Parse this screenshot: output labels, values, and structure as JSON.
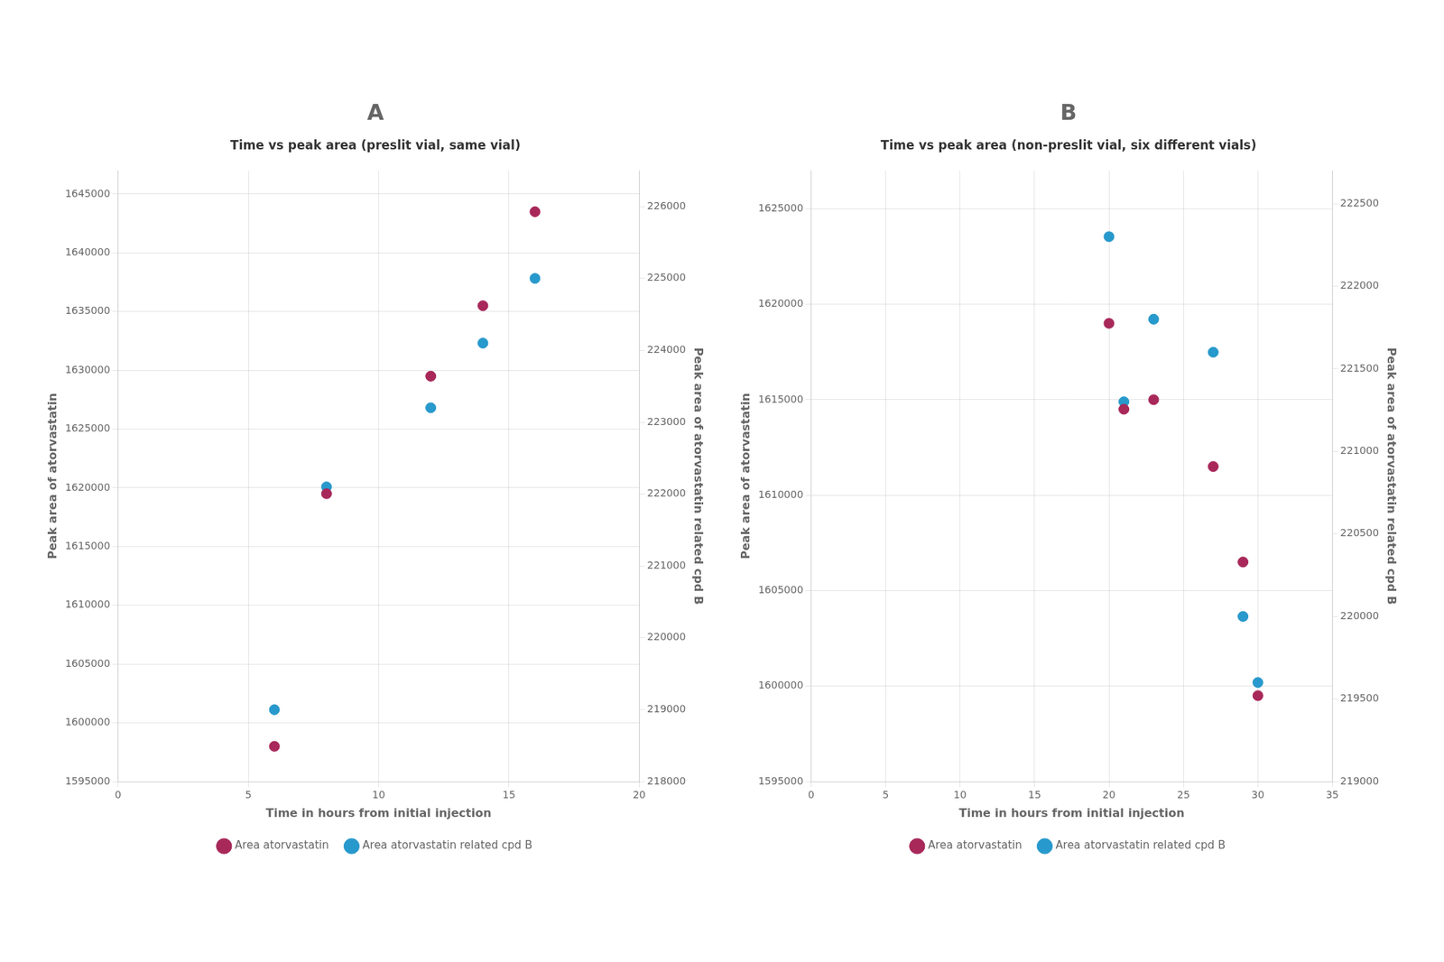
{
  "chart_data": [
    {
      "type": "scatter",
      "annotations": [
        "A"
      ],
      "title": "Time vs peak area (preslit vial, same vial)",
      "x_label": "Time in hours from initial injection",
      "y_label": "Peak area of atorvastatin",
      "y2_label": "Peak area of atorvastatin related cpd B",
      "x": [
        6,
        8,
        12,
        14,
        16
      ],
      "series": [
        {
          "name": "Area atorvastatin",
          "color": "#a8285a",
          "marker": "circle",
          "axis": "y",
          "values": [
            1598000,
            1619500,
            1629500,
            1635500,
            1643500
          ]
        },
        {
          "name": "Area atorvastatin related cpd B",
          "color": "#2899cc",
          "marker": "circle",
          "axis": "y2",
          "values": [
            219000,
            222100,
            223200,
            224100,
            225000
          ]
        }
      ],
      "xlim": [
        0,
        20
      ],
      "xticks": [
        0,
        5,
        10,
        15,
        20
      ],
      "ylim": [
        1595000,
        1647000
      ],
      "yticks": [
        1595000,
        1600000,
        1605000,
        1610000,
        1615000,
        1620000,
        1625000,
        1630000,
        1635000,
        1640000,
        1645000
      ],
      "y2lim": [
        218000,
        226500
      ],
      "y2ticks": [
        218000,
        219000,
        220000,
        221000,
        222000,
        223000,
        224000,
        225000,
        226000
      ],
      "grid": true,
      "legend": "bottom"
    },
    {
      "type": "scatter",
      "annotations": [
        "B"
      ],
      "title": "Time vs peak area (non-preslit vial, six different vials)",
      "x_label": "Time in hours from initial injection",
      "y_label": "Peak area of atorvastatin",
      "y2_label": "Peak area of atorvastatin related cpd B",
      "x": [
        20,
        21,
        23,
        27,
        29,
        30
      ],
      "series": [
        {
          "name": "Area atorvastatin",
          "color": "#a8285a",
          "marker": "circle",
          "axis": "y",
          "values": [
            1619000,
            1614500,
            1615000,
            1611500,
            1606500,
            1599500
          ]
        },
        {
          "name": "Area atorvastatin related cpd B",
          "color": "#2899cc",
          "marker": "circle",
          "axis": "y2",
          "values": [
            222300,
            221300,
            221800,
            221600,
            220000,
            219600
          ]
        }
      ],
      "xlim": [
        0,
        35
      ],
      "xticks": [
        0,
        5,
        10,
        15,
        20,
        25,
        30,
        35
      ],
      "ylim": [
        1595000,
        1627000
      ],
      "yticks": [
        1595000,
        1600000,
        1605000,
        1610000,
        1615000,
        1620000,
        1625000
      ],
      "y2lim": [
        219000,
        222700
      ],
      "y2ticks": [
        219000,
        219500,
        220000,
        220500,
        221000,
        221500,
        222000,
        222500
      ],
      "grid": true,
      "legend": "bottom"
    }
  ]
}
